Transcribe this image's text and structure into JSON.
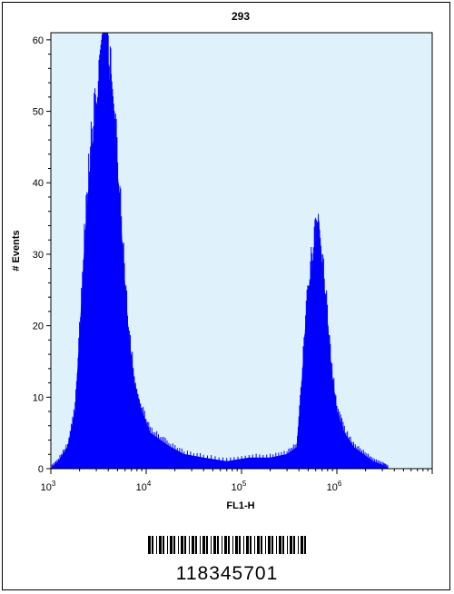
{
  "chart_data": {
    "type": "area",
    "title": "293",
    "xlabel": "FL1-H",
    "ylabel": "# Events",
    "x_scale": "log",
    "xlim": [
      1000,
      10000000
    ],
    "ylim": [
      0,
      61
    ],
    "x_ticks": [
      {
        "value": 1000,
        "base": "10",
        "exp": "3"
      },
      {
        "value": 10000,
        "base": "10",
        "exp": "4"
      },
      {
        "value": 100000,
        "base": "10",
        "exp": "5"
      },
      {
        "value": 1000000,
        "base": "10",
        "exp": "6"
      }
    ],
    "y_ticks": [
      0,
      10,
      20,
      30,
      40,
      50,
      60
    ],
    "background_color": "#dff2fb",
    "fill_color": "#0000ff",
    "series": [
      {
        "x": [
          1000,
          1200,
          1500,
          1800,
          2000,
          2300,
          2600,
          2900,
          3200,
          3500,
          3700,
          4000,
          4300,
          4700,
          5200,
          5800,
          6500,
          7500,
          9000,
          11000,
          14000,
          18000,
          25000,
          40000,
          70000,
          120000,
          200000,
          300000,
          380000,
          420000,
          470000,
          520000,
          580000,
          640000,
          700000,
          780000,
          870000,
          1000000,
          1200000,
          1500000,
          1900000,
          2400000,
          3000000,
          3500000
        ],
        "y": [
          0,
          1,
          3,
          8,
          18,
          33,
          42,
          48,
          53,
          56,
          61,
          55,
          52,
          46,
          38,
          28,
          19,
          12,
          8,
          5,
          4,
          3,
          2,
          1.5,
          1,
          1.5,
          1.5,
          2,
          3,
          10,
          20,
          26,
          30,
          35,
          28,
          22,
          14,
          8,
          5,
          3,
          2,
          1,
          0.5,
          0
        ]
      }
    ]
  },
  "barcode": {
    "text": "118345701"
  }
}
